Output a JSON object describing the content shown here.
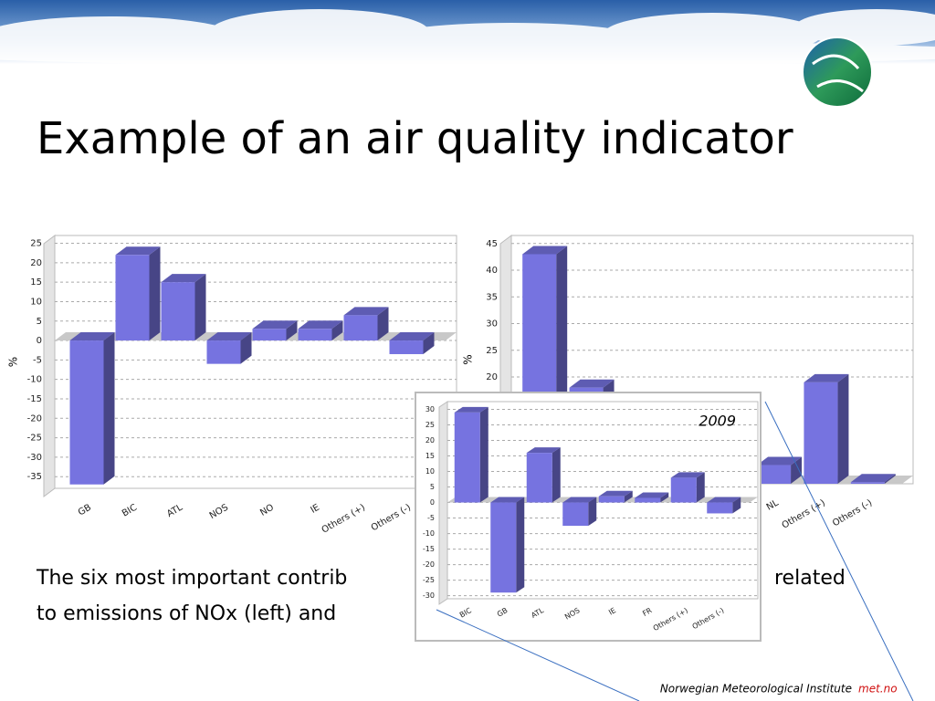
{
  "slide": {
    "title": "Example of an air quality indicator",
    "body": [
      "The six most important contrib",
      "related",
      "to emissions of NOx (left) and"
    ],
    "footer": {
      "institute": "Norwegian Meteorological Institute",
      "site": "met.no"
    }
  },
  "chart_data": [
    {
      "type": "bar",
      "ylabel": "%",
      "categories": [
        "GB",
        "BIC",
        "ATL",
        "NOS",
        "NO",
        "IE",
        "Others (+)",
        "Others (-)"
      ],
      "values": [
        -37,
        22,
        15,
        -6,
        3,
        3,
        6.5,
        -3.5
      ],
      "color": "#7673e0",
      "ylim": [
        -38,
        27
      ],
      "yticks": [
        25,
        20,
        15,
        10,
        5,
        0,
        -5,
        -10,
        -15,
        -20,
        -25,
        -30,
        -35
      ],
      "grid": true
    },
    {
      "type": "bar",
      "ylabel": "%",
      "categories": [
        null,
        null,
        null,
        null,
        null,
        "NL",
        "Others (+)",
        "Others (-)"
      ],
      "values": [
        43,
        18,
        null,
        null,
        null,
        3.5,
        19,
        0.3
      ],
      "color": "#7673e0",
      "ylim": [
        0,
        46.5
      ],
      "yticks": [
        45,
        40,
        35,
        30,
        25,
        20
      ],
      "grid": true
    },
    {
      "type": "bar",
      "annotation": "2009",
      "categories": [
        "BIC",
        "GB",
        "ATL",
        "NOS",
        "IE",
        "FR",
        "Others (+)",
        "Others (-)"
      ],
      "values": [
        29,
        -29,
        16,
        -7.5,
        2,
        1.5,
        8,
        -3.5
      ],
      "color": "#7673e0",
      "ylim": [
        -31,
        32.5
      ],
      "yticks": [
        30,
        25,
        20,
        15,
        10,
        5,
        0,
        -5,
        -10,
        -15,
        -20,
        -25,
        -30
      ],
      "grid": true
    }
  ]
}
